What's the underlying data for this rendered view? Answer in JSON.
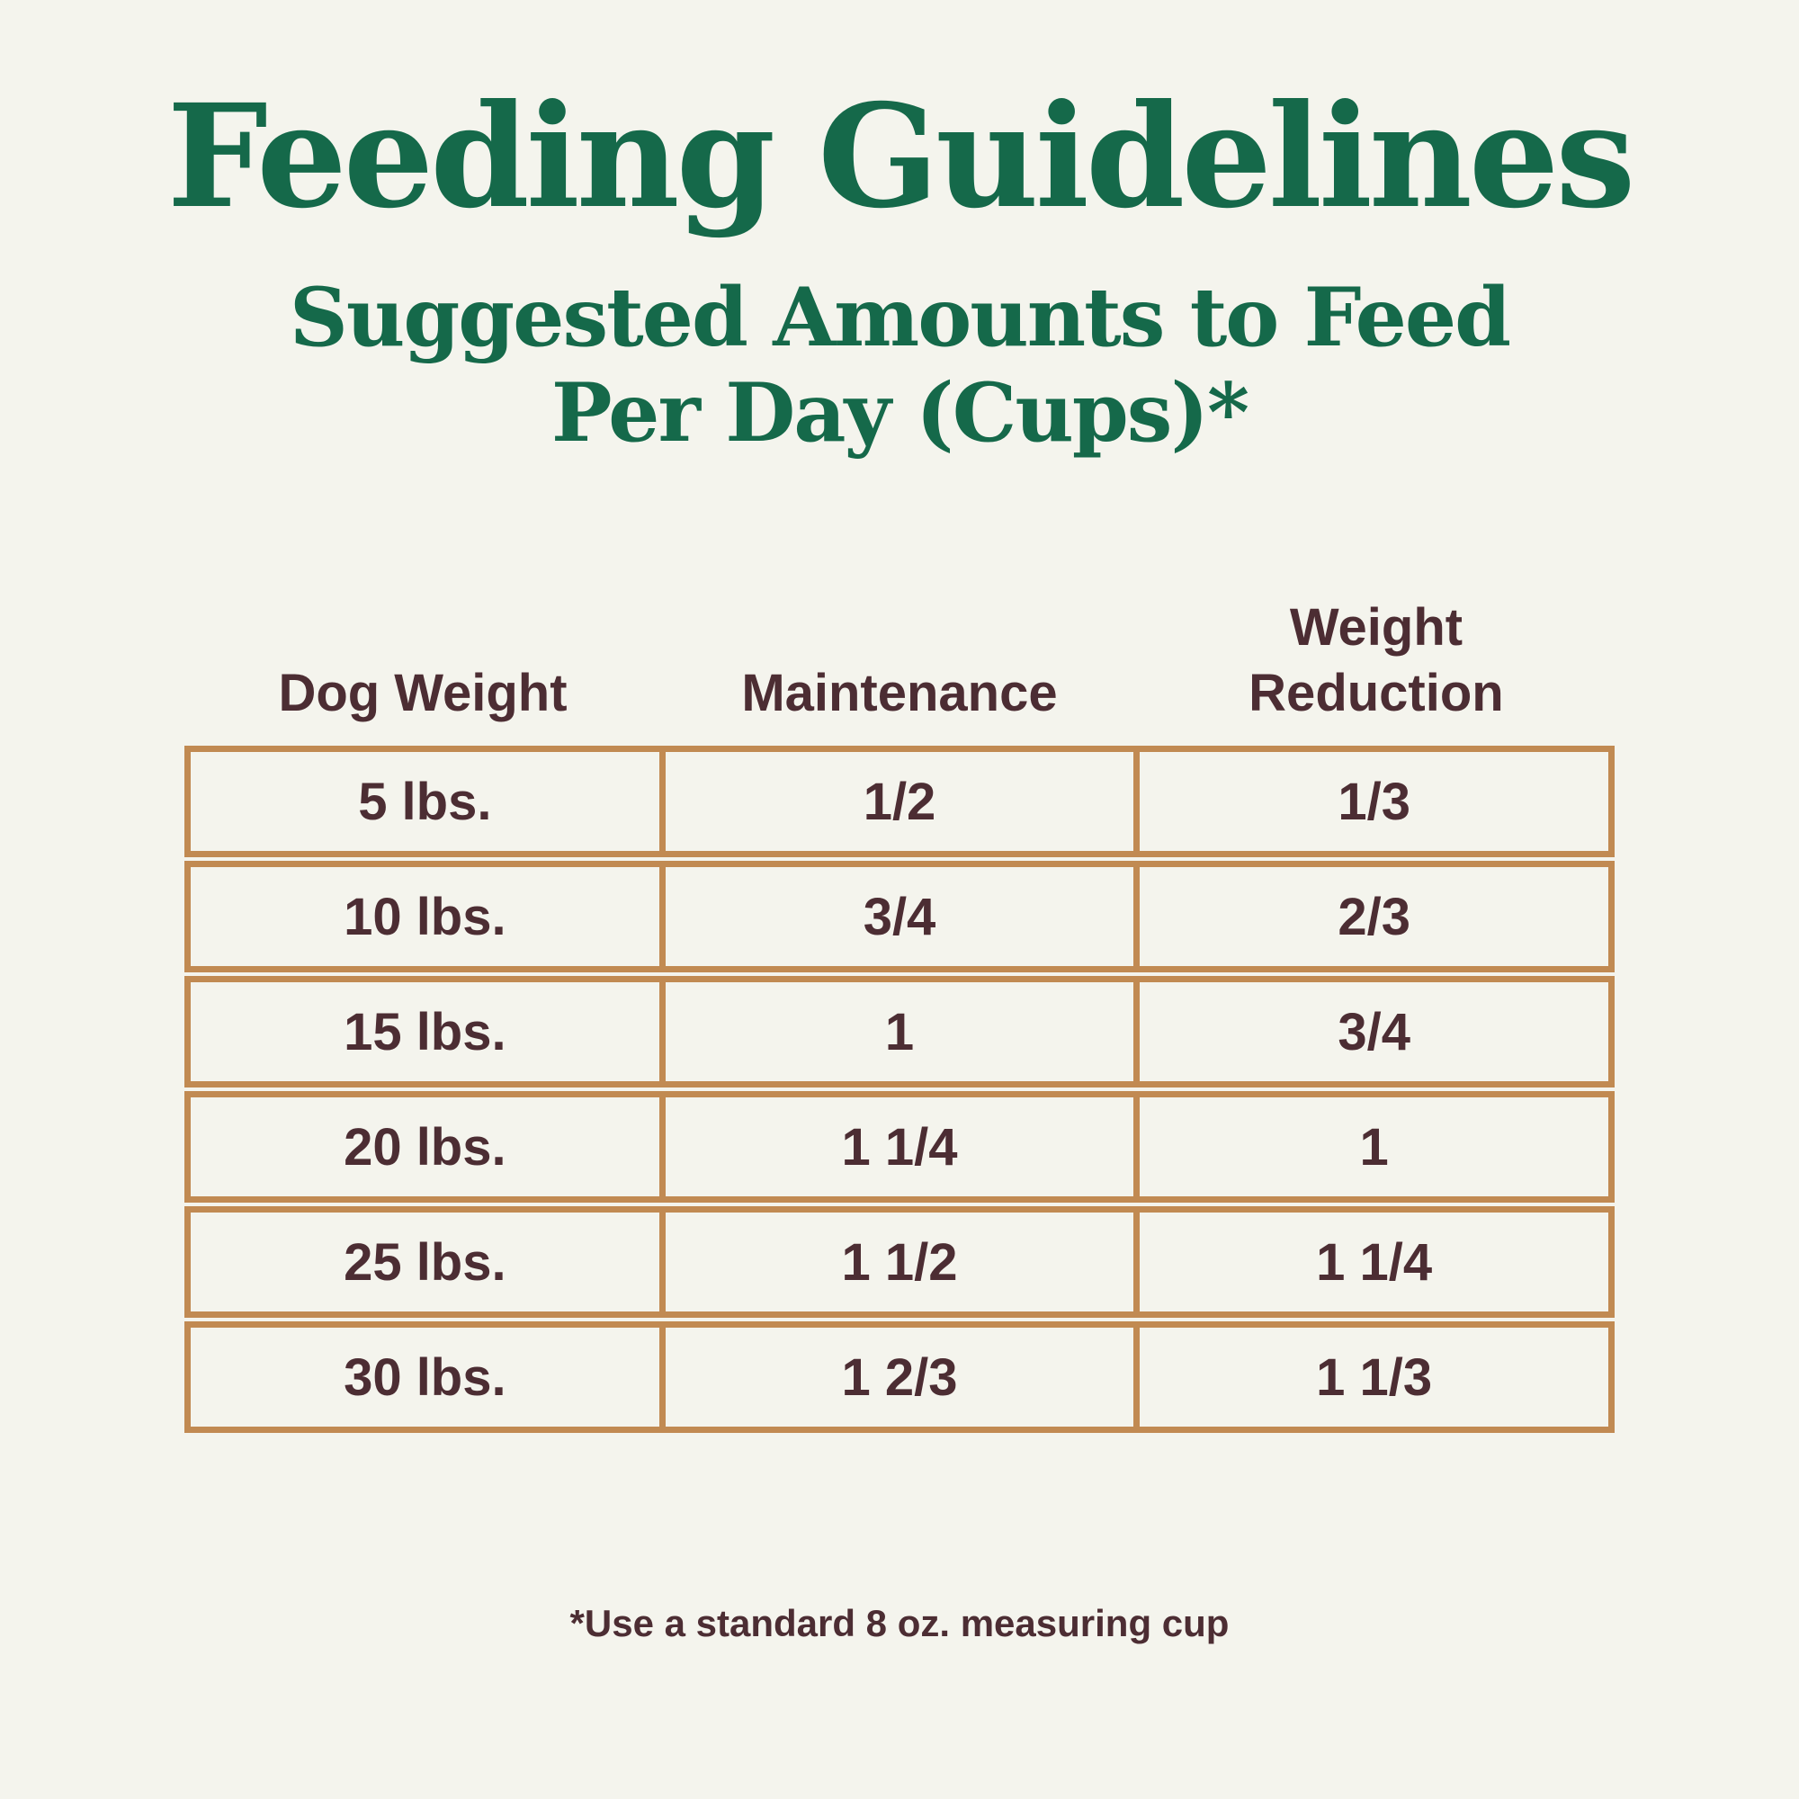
{
  "page": {
    "title": "Feeding Guidelines",
    "subtitle_line1": "Suggested Amounts to Feed",
    "subtitle_line2": "Per Day (Cups)*",
    "footnote": "*Use a standard 8 oz. measuring cup"
  },
  "colors": {
    "background": "#f4f4ed",
    "heading_green": "#15694a",
    "table_text_brown": "#4c2d33",
    "table_border_tan": "#c18a52"
  },
  "table": {
    "columns": [
      "Dog Weight",
      "Maintenance",
      "Weight Reduction"
    ],
    "rows": [
      {
        "dog_weight": "5 lbs.",
        "maintenance": "1/2",
        "weight_reduction": "1/3"
      },
      {
        "dog_weight": "10 lbs.",
        "maintenance": "3/4",
        "weight_reduction": "2/3"
      },
      {
        "dog_weight": "15 lbs.",
        "maintenance": "1",
        "weight_reduction": "3/4"
      },
      {
        "dog_weight": "20 lbs.",
        "maintenance": "1 1/4",
        "weight_reduction": "1"
      },
      {
        "dog_weight": "25 lbs.",
        "maintenance": "1 1/2",
        "weight_reduction": "1 1/4"
      },
      {
        "dog_weight": "30 lbs.",
        "maintenance": "1 2/3",
        "weight_reduction": "1 1/3"
      }
    ]
  },
  "chart_data": {
    "type": "table",
    "title": "Feeding Guidelines",
    "subtitle": "Suggested Amounts to Feed Per Day (Cups)*",
    "columns": [
      "Dog Weight",
      "Maintenance",
      "Weight Reduction"
    ],
    "rows": [
      [
        "5 lbs.",
        "1/2",
        "1/3"
      ],
      [
        "10 lbs.",
        "3/4",
        "2/3"
      ],
      [
        "15 lbs.",
        "1",
        "3/4"
      ],
      [
        "20 lbs.",
        "1 1/4",
        "1"
      ],
      [
        "25 lbs.",
        "1 1/2",
        "1 1/4"
      ],
      [
        "30 lbs.",
        "1 2/3",
        "1 1/3"
      ]
    ],
    "footnote": "*Use a standard 8 oz. measuring cup",
    "units": "cups per day"
  }
}
